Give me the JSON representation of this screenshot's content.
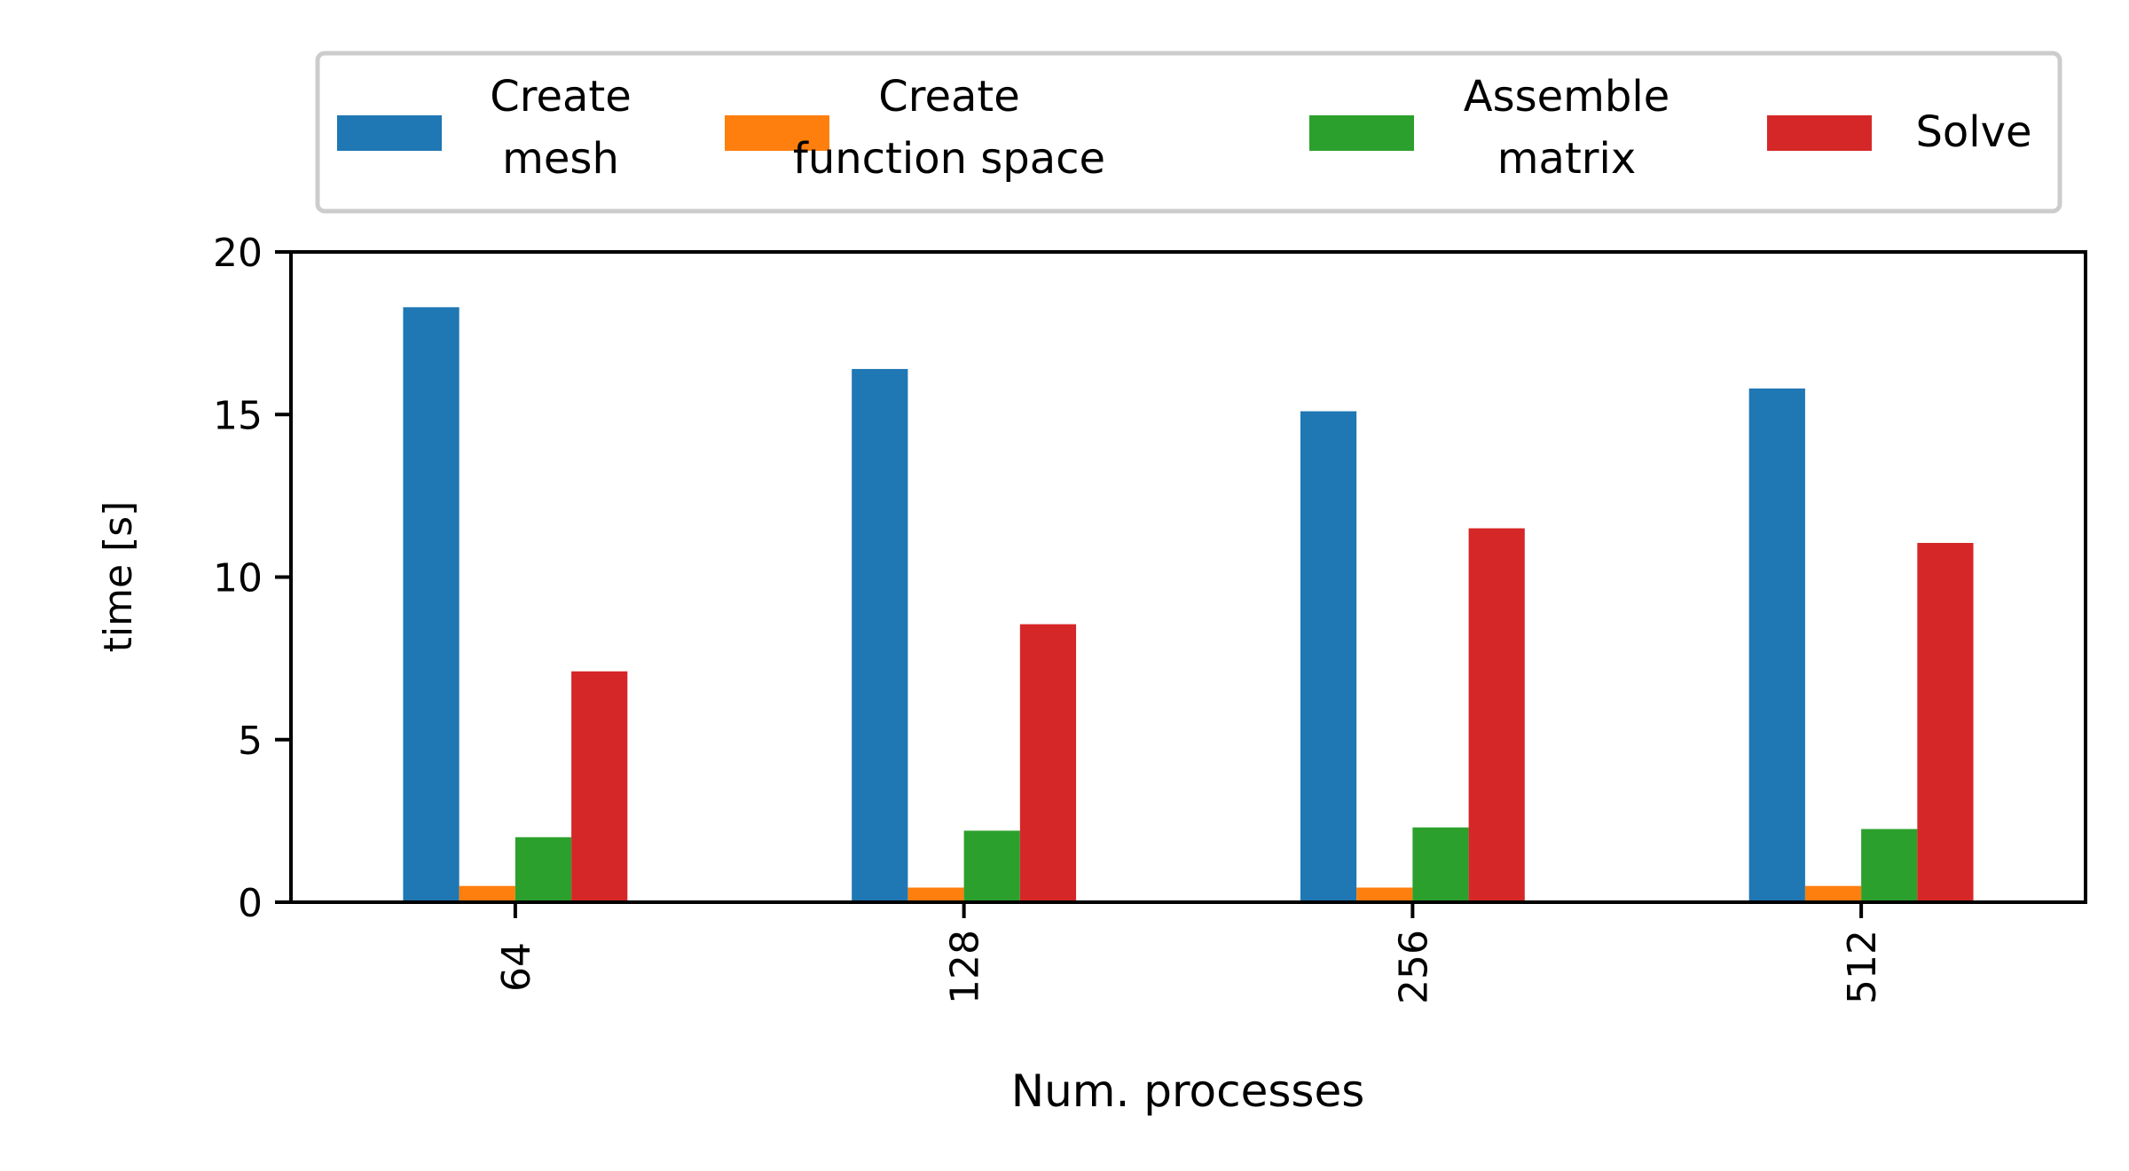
{
  "chart_data": {
    "type": "bar",
    "title": "",
    "xlabel": "Num. processes",
    "ylabel": "time [s]",
    "categories": [
      "64",
      "128",
      "256",
      "512"
    ],
    "ylim": [
      0,
      20
    ],
    "yticks": [
      "0",
      "5",
      "10",
      "15",
      "20"
    ],
    "grid": false,
    "legend_position": "top",
    "series": [
      {
        "name": "Create\nmesh",
        "color": "#1f77b4",
        "values": [
          18.3,
          16.4,
          15.1,
          15.8
        ]
      },
      {
        "name": "Create\nfunction space",
        "color": "#ff7f0e",
        "values": [
          0.5,
          0.45,
          0.45,
          0.5
        ]
      },
      {
        "name": "Assemble\nmatrix",
        "color": "#2ca02c",
        "values": [
          2.0,
          2.2,
          2.3,
          2.25
        ]
      },
      {
        "name": "Solve",
        "color": "#d62728",
        "values": [
          7.1,
          8.55,
          11.5,
          11.05
        ]
      }
    ]
  }
}
